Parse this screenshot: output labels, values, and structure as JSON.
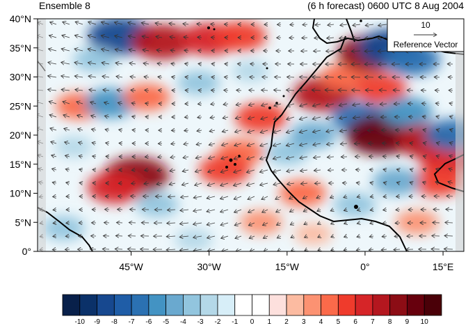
{
  "header": {
    "left_title": "Ensemble 8",
    "right_title": "(6 h forecast) 0600 UTC 8 Aug 2004"
  },
  "map": {
    "lon_range": [
      -63,
      19
    ],
    "lat_range": [
      0,
      40
    ],
    "lon_ticks": [
      {
        "value": -45,
        "label": "45°W"
      },
      {
        "value": -30,
        "label": "30°W"
      },
      {
        "value": -15,
        "label": "15°W"
      },
      {
        "value": 0,
        "label": "0°"
      },
      {
        "value": 15,
        "label": "15°E"
      }
    ],
    "lat_ticks": [
      {
        "value": 0,
        "label": "0°"
      },
      {
        "value": 5,
        "label": "5°N"
      },
      {
        "value": 10,
        "label": "10°N"
      },
      {
        "value": 15,
        "label": "15°N"
      },
      {
        "value": 20,
        "label": "20°N"
      },
      {
        "value": 25,
        "label": "25°N"
      },
      {
        "value": 30,
        "label": "30°N"
      },
      {
        "value": 35,
        "label": "35°N"
      },
      {
        "value": 40,
        "label": "40°N"
      }
    ],
    "reference_vector": {
      "value": "10",
      "label": "Reference Vector"
    },
    "field_anomalies": [
      {
        "lon": -47,
        "lat": 37,
        "value": -8
      },
      {
        "lon": -39,
        "lat": 36,
        "value": 7
      },
      {
        "lon": -30,
        "lat": 36.5,
        "value": 6
      },
      {
        "lon": -24,
        "lat": 37,
        "value": 5
      },
      {
        "lon": -55,
        "lat": 25,
        "value": 4
      },
      {
        "lon": -49,
        "lat": 25.5,
        "value": -5
      },
      {
        "lon": -42,
        "lat": 26.5,
        "value": 4
      },
      {
        "lon": -32,
        "lat": 29,
        "value": -3
      },
      {
        "lon": -22,
        "lat": 31,
        "value": -2
      },
      {
        "lon": -44,
        "lat": 13,
        "value": 8
      },
      {
        "lon": -48,
        "lat": 11,
        "value": 6
      },
      {
        "lon": -40,
        "lat": 8,
        "value": -3
      },
      {
        "lon": -56,
        "lat": 18,
        "value": -2
      },
      {
        "lon": -20,
        "lat": 23,
        "value": 5
      },
      {
        "lon": -24,
        "lat": 17,
        "value": 4
      },
      {
        "lon": -27,
        "lat": 14,
        "value": 5
      },
      {
        "lon": -15,
        "lat": 17,
        "value": -3
      },
      {
        "lon": -10,
        "lat": 20,
        "value": -4
      },
      {
        "lon": -8,
        "lat": 27,
        "value": 7
      },
      {
        "lon": -4,
        "lat": 30,
        "value": 4
      },
      {
        "lon": -1,
        "lat": 23,
        "value": -6
      },
      {
        "lon": 1,
        "lat": 34,
        "value": 8
      },
      {
        "lon": 3,
        "lat": 28,
        "value": 5
      },
      {
        "lon": 3,
        "lat": 20,
        "value": 9
      },
      {
        "lon": 5,
        "lat": 35,
        "value": -8
      },
      {
        "lon": 9,
        "lat": 33,
        "value": -6
      },
      {
        "lon": 8,
        "lat": 24,
        "value": -5
      },
      {
        "lon": 12,
        "lat": 19,
        "value": 7
      },
      {
        "lon": 16,
        "lat": 16,
        "value": 6
      },
      {
        "lon": 14,
        "lat": 12,
        "value": 5
      },
      {
        "lon": 17,
        "lat": 20,
        "value": -6
      },
      {
        "lon": 6,
        "lat": 12,
        "value": -4
      },
      {
        "lon": -2,
        "lat": 8,
        "value": -3
      },
      {
        "lon": -12,
        "lat": 10,
        "value": 4
      },
      {
        "lon": -20,
        "lat": 5,
        "value": 3
      },
      {
        "lon": -33,
        "lat": 2,
        "value": -2
      },
      {
        "lon": 10,
        "lat": 5,
        "value": 3
      },
      {
        "lon": -58,
        "lat": 4,
        "value": -3
      },
      {
        "lon": -10,
        "lat": 3,
        "value": 2
      },
      {
        "lon": -52,
        "lat": 33,
        "value": -3
      }
    ]
  },
  "colorbar": {
    "labels": [
      "-10",
      "-9",
      "-8",
      "-7",
      "-6",
      "-5",
      "-4",
      "-3",
      "-2",
      "-1",
      "0",
      "1",
      "2",
      "3",
      "4",
      "5",
      "6",
      "7",
      "8",
      "9",
      "10"
    ],
    "colors": [
      "#08204a",
      "#0b3169",
      "#17488f",
      "#1f5da7",
      "#2b71b2",
      "#4393c3",
      "#6aa9cf",
      "#92c5de",
      "#b4d8e8",
      "#d7eef8",
      "#ffffff",
      "#ffffff",
      "#fde0dd",
      "#fcbba1",
      "#fc9272",
      "#fb6a4a",
      "#ef3b2c",
      "#d62528",
      "#b4171f",
      "#8c0d15",
      "#67000d",
      "#4a0008"
    ]
  }
}
